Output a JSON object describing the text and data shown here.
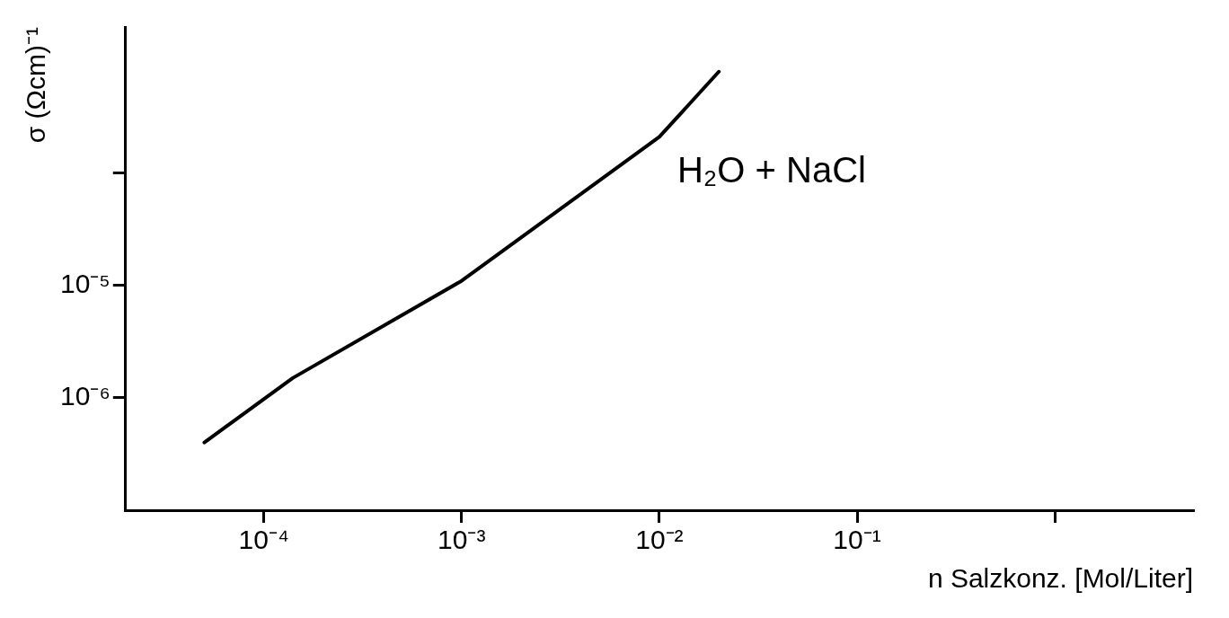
{
  "chart_data": {
    "type": "line",
    "ylabel": "σ (Ωcm)⁻¹",
    "xlabel": "n Salzkonz. [Mol/Liter]",
    "log": "xy",
    "grid": false,
    "legend": false,
    "marker": "none",
    "line_style": "solid",
    "xlim": [
      2e-05,
      5
    ],
    "xticks": [
      {
        "value": 0.0001,
        "label": "10⁻⁴"
      },
      {
        "value": 0.001,
        "label": "10⁻³"
      },
      {
        "value": 0.01,
        "label": "10⁻²"
      },
      {
        "value": 0.1,
        "label": "10⁻¹"
      },
      {
        "value": 1,
        "label": null
      }
    ],
    "ylim": [
      1e-07,
      0.002
    ],
    "yticks": [
      {
        "value": 1e-06,
        "label": "10⁻⁶"
      },
      {
        "value": 1e-05,
        "label": "10⁻⁵"
      },
      {
        "value": 0.0001,
        "label": null
      }
    ],
    "series": [
      {
        "name": "H₂O + NaCl",
        "color": "#000000",
        "x": [
          5e-05,
          0.00014,
          0.001,
          0.01,
          0.02
        ],
        "values": [
          4e-07,
          1.5e-06,
          1.1e-05,
          0.00021,
          0.0008
        ]
      }
    ]
  }
}
